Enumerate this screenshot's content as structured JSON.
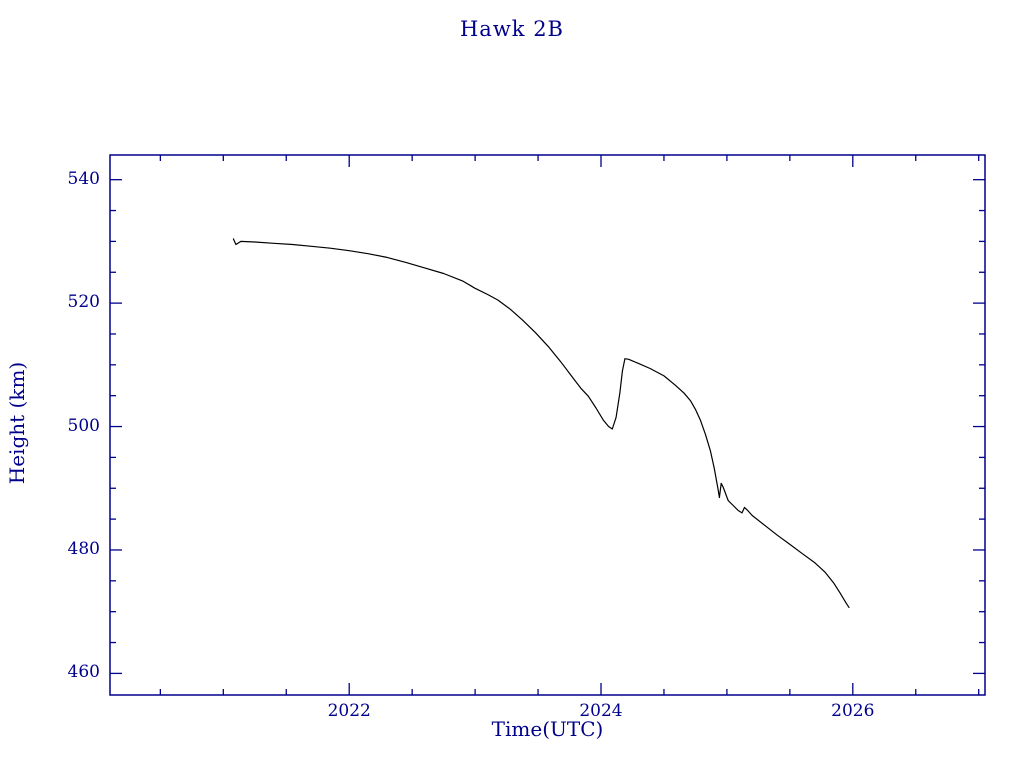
{
  "colors": {
    "axis": "#00008B",
    "text": "#00008B",
    "line": "#000000",
    "background": "#ffffff"
  },
  "chart_data": {
    "type": "line",
    "title": "Hawk 2B",
    "xlabel": "Time(UTC)",
    "ylabel": "Height (km)",
    "xlim": [
      2020.1,
      2027.05
    ],
    "ylim": [
      456.5,
      544
    ],
    "grid": false,
    "legend": "none",
    "x_ticks": [
      {
        "value": 2022,
        "label": "2022"
      },
      {
        "value": 2024,
        "label": "2024"
      },
      {
        "value": 2026,
        "label": "2026"
      }
    ],
    "y_ticks": [
      {
        "value": 460,
        "label": "460"
      },
      {
        "value": 480,
        "label": "480"
      },
      {
        "value": 500,
        "label": "500"
      },
      {
        "value": 520,
        "label": "520"
      },
      {
        "value": 540,
        "label": "540"
      }
    ],
    "x_minor_step": 0.5,
    "y_minor_step": 5,
    "series": [
      {
        "name": "orbit-height",
        "x": [
          2021.08,
          2021.1,
          2021.14,
          2021.25,
          2021.4,
          2021.55,
          2021.7,
          2021.85,
          2022.0,
          2022.15,
          2022.3,
          2022.45,
          2022.6,
          2022.75,
          2022.9,
          2023.0,
          2023.1,
          2023.18,
          2023.28,
          2023.38,
          2023.48,
          2023.58,
          2023.68,
          2023.78,
          2023.84,
          2023.9,
          2023.96,
          2024.02,
          2024.06,
          2024.09,
          2024.12,
          2024.15,
          2024.17,
          2024.19,
          2024.22,
          2024.3,
          2024.39,
          2024.5,
          2024.59,
          2024.66,
          2024.71,
          2024.75,
          2024.79,
          2024.83,
          2024.87,
          2024.9,
          2024.93,
          2024.94,
          2024.955,
          2024.97,
          2025.01,
          2025.05,
          2025.09,
          2025.12,
          2025.14,
          2025.17,
          2025.2,
          2025.3,
          2025.4,
          2025.5,
          2025.6,
          2025.7,
          2025.78,
          2025.85,
          2025.9,
          2025.95,
          2025.97
        ],
        "y": [
          530.4,
          529.5,
          530.0,
          529.9,
          529.7,
          529.5,
          529.2,
          528.9,
          528.5,
          528.0,
          527.4,
          526.6,
          525.7,
          524.8,
          523.6,
          522.4,
          521.4,
          520.5,
          519.0,
          517.2,
          515.2,
          513.0,
          510.5,
          507.8,
          506.2,
          504.9,
          503.0,
          501.0,
          500.0,
          499.6,
          501.5,
          505.5,
          509.0,
          511.0,
          510.9,
          510.2,
          509.4,
          508.2,
          506.7,
          505.4,
          504.2,
          502.8,
          501.0,
          498.7,
          496.0,
          493.2,
          489.8,
          488.5,
          490.8,
          490.2,
          488.0,
          487.2,
          486.4,
          486.0,
          486.9,
          486.3,
          485.6,
          484.0,
          482.4,
          480.9,
          479.4,
          477.9,
          476.4,
          474.6,
          473.0,
          471.3,
          470.7
        ]
      }
    ]
  }
}
